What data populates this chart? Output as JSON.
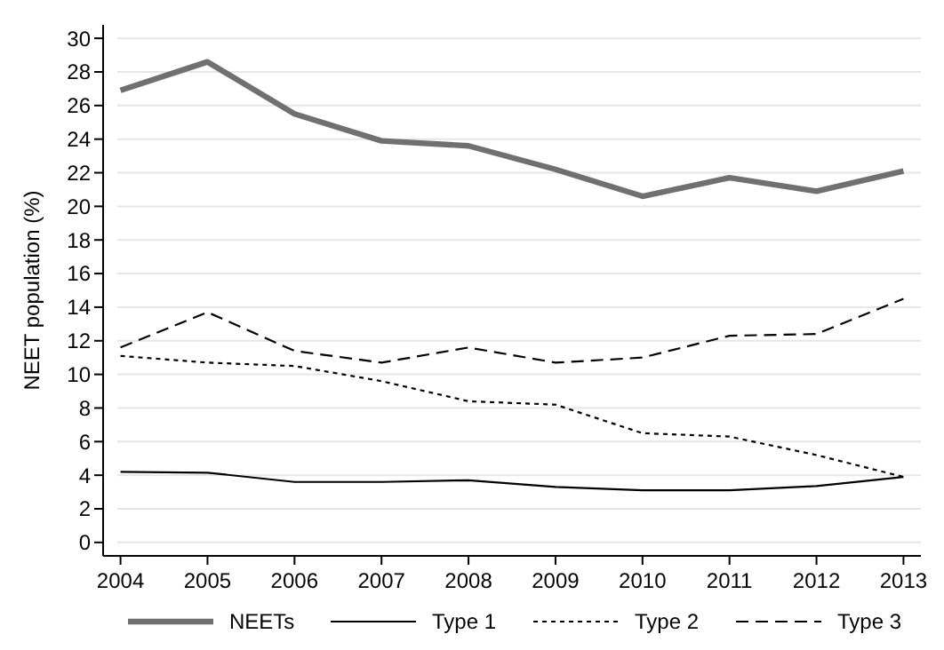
{
  "chart_data": {
    "type": "line",
    "ylabel": "NEET population (%)",
    "x": [
      2004,
      2005,
      2006,
      2007,
      2008,
      2009,
      2010,
      2011,
      2012,
      2013
    ],
    "xlim": [
      2003.8,
      2013.2
    ],
    "xticks": [
      2004,
      2005,
      2006,
      2007,
      2008,
      2009,
      2010,
      2011,
      2012,
      2013
    ],
    "ylim": [
      -0.8,
      30.8
    ],
    "yticks": [
      0,
      2,
      4,
      6,
      8,
      10,
      12,
      14,
      16,
      18,
      20,
      22,
      24,
      26,
      28,
      30
    ],
    "grid": "y",
    "legend": "bottom",
    "marker": "none",
    "series": [
      {
        "name": "NEETs",
        "color": "#707070",
        "line_style": "solid",
        "values": [
          26.9,
          28.6,
          25.5,
          23.9,
          23.6,
          22.2,
          20.6,
          21.7,
          20.9,
          22.1
        ]
      },
      {
        "name": "Type 1",
        "color": "#000000",
        "line_style": "solid",
        "values": [
          4.2,
          4.15,
          3.6,
          3.6,
          3.7,
          3.3,
          3.1,
          3.1,
          3.35,
          3.9
        ]
      },
      {
        "name": "Type 2",
        "color": "#000000",
        "line_style": "dotted",
        "values": [
          11.1,
          10.7,
          10.5,
          9.6,
          8.4,
          8.2,
          6.5,
          6.3,
          5.2,
          3.9
        ]
      },
      {
        "name": "Type 3",
        "color": "#000000",
        "line_style": "dashed",
        "values": [
          11.6,
          13.7,
          11.4,
          10.7,
          11.6,
          10.7,
          11.0,
          12.3,
          12.4,
          14.5
        ]
      }
    ]
  }
}
